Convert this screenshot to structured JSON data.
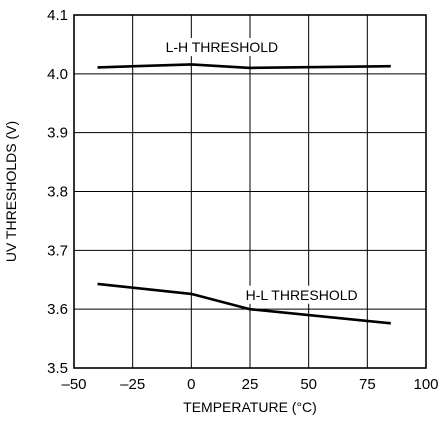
{
  "chart_data": {
    "type": "line",
    "title": "",
    "xlabel": "TEMPERATURE (°C)",
    "ylabel": "UV THRESHOLDS (V)",
    "xlim": [
      -50,
      100
    ],
    "ylim": [
      3.5,
      4.1
    ],
    "xticks": [
      -50,
      -25,
      0,
      25,
      50,
      75,
      100
    ],
    "xtick_labels": [
      "–50",
      "–25",
      "0",
      "25",
      "50",
      "75",
      "100"
    ],
    "yticks": [
      3.5,
      3.6,
      3.7,
      3.8,
      3.9,
      4.0,
      4.1
    ],
    "ytick_labels": [
      "3.5",
      "3.6",
      "3.7",
      "3.8",
      "3.9",
      "4.0",
      "4.1"
    ],
    "grid": true,
    "legend": "none",
    "series": [
      {
        "name": "L-H THRESHOLD",
        "x": [
          -40,
          0,
          25,
          85
        ],
        "y": [
          4.011,
          4.016,
          4.01,
          4.013
        ]
      },
      {
        "name": "H-L THRESHOLD",
        "x": [
          -40,
          0,
          25,
          85
        ],
        "y": [
          3.643,
          3.626,
          3.6,
          3.576
        ]
      }
    ],
    "annotations": [
      {
        "text": "L-H THRESHOLD",
        "x": 13,
        "y": 4.037
      },
      {
        "text": "H-L THRESHOLD",
        "x": 47,
        "y": 3.616
      }
    ]
  }
}
